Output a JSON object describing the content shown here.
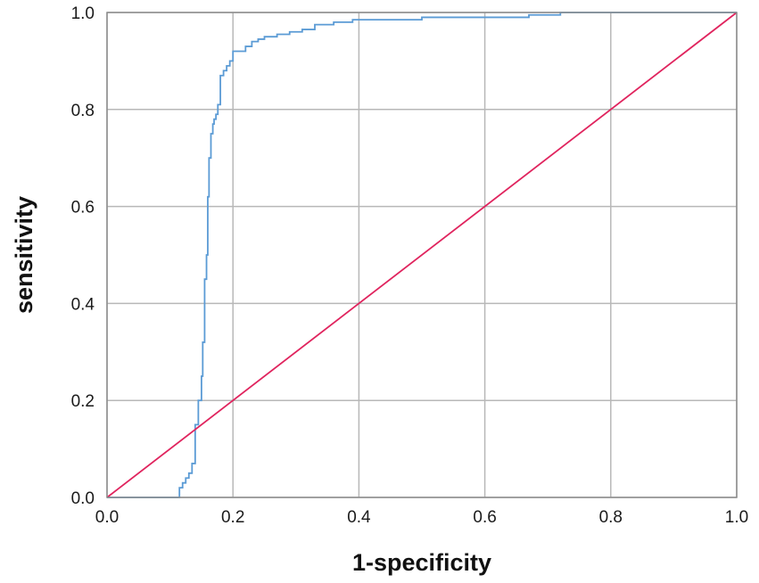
{
  "chart_data": {
    "type": "line",
    "title": "",
    "xlabel": "1-specificity",
    "ylabel": "sensitivity",
    "xlim": [
      0,
      1
    ],
    "ylim": [
      0,
      1
    ],
    "xticks": [
      "0.0",
      "0.2",
      "0.4",
      "0.6",
      "0.8",
      "1.0"
    ],
    "yticks": [
      "0.0",
      "0.2",
      "0.4",
      "0.6",
      "0.8",
      "1.0"
    ],
    "grid": true,
    "legend": "none",
    "series": [
      {
        "color": "#5b9bd5",
        "step": true,
        "x": [
          0.0,
          0.115,
          0.115,
          0.12,
          0.12,
          0.125,
          0.125,
          0.13,
          0.13,
          0.135,
          0.135,
          0.14,
          0.14,
          0.145,
          0.145,
          0.15,
          0.15,
          0.152,
          0.152,
          0.155,
          0.155,
          0.158,
          0.158,
          0.16,
          0.16,
          0.162,
          0.162,
          0.165,
          0.165,
          0.168,
          0.168,
          0.17,
          0.17,
          0.173,
          0.173,
          0.176,
          0.176,
          0.18,
          0.18,
          0.185,
          0.185,
          0.19,
          0.19,
          0.195,
          0.195,
          0.2,
          0.2,
          0.22,
          0.22,
          0.23,
          0.23,
          0.24,
          0.24,
          0.25,
          0.25,
          0.27,
          0.27,
          0.29,
          0.29,
          0.31,
          0.31,
          0.33,
          0.33,
          0.36,
          0.36,
          0.39,
          0.39,
          0.5,
          0.5,
          0.67,
          0.67,
          0.72,
          0.72,
          1.0
        ],
        "y": [
          0.0,
          0.0,
          0.02,
          0.02,
          0.03,
          0.03,
          0.04,
          0.04,
          0.05,
          0.05,
          0.07,
          0.07,
          0.15,
          0.15,
          0.2,
          0.2,
          0.25,
          0.25,
          0.32,
          0.32,
          0.45,
          0.45,
          0.5,
          0.5,
          0.62,
          0.62,
          0.7,
          0.7,
          0.75,
          0.75,
          0.77,
          0.77,
          0.78,
          0.78,
          0.79,
          0.79,
          0.81,
          0.81,
          0.87,
          0.87,
          0.88,
          0.88,
          0.89,
          0.89,
          0.9,
          0.9,
          0.92,
          0.92,
          0.93,
          0.93,
          0.94,
          0.94,
          0.945,
          0.945,
          0.95,
          0.95,
          0.955,
          0.955,
          0.96,
          0.96,
          0.965,
          0.965,
          0.975,
          0.975,
          0.98,
          0.98,
          0.985,
          0.985,
          0.99,
          0.99,
          0.995,
          0.995,
          1.0,
          1.0
        ]
      },
      {
        "color": "#e0245e",
        "step": false,
        "x": [
          0.0,
          1.0
        ],
        "y": [
          0.0,
          1.0
        ]
      }
    ]
  }
}
